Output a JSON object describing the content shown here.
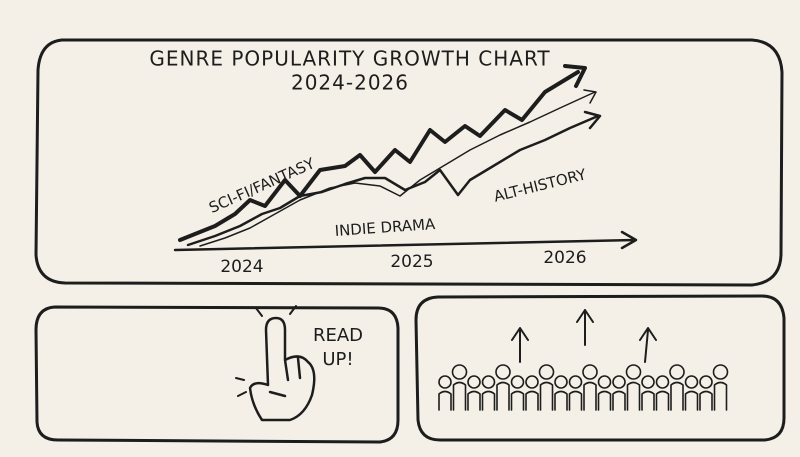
{
  "header": {
    "title": "GENRE POPULARITY GROWTH CHART",
    "subtitle": "2024-2026"
  },
  "chart": {
    "series_labels": [
      "SCI-FI/FANTASY",
      "INDIE DRAMA",
      "ALT-HISTORY"
    ],
    "x_labels": [
      "2024",
      "2025",
      "2026"
    ]
  },
  "callout": {
    "lines": [
      "READ",
      "UP!"
    ]
  }
}
